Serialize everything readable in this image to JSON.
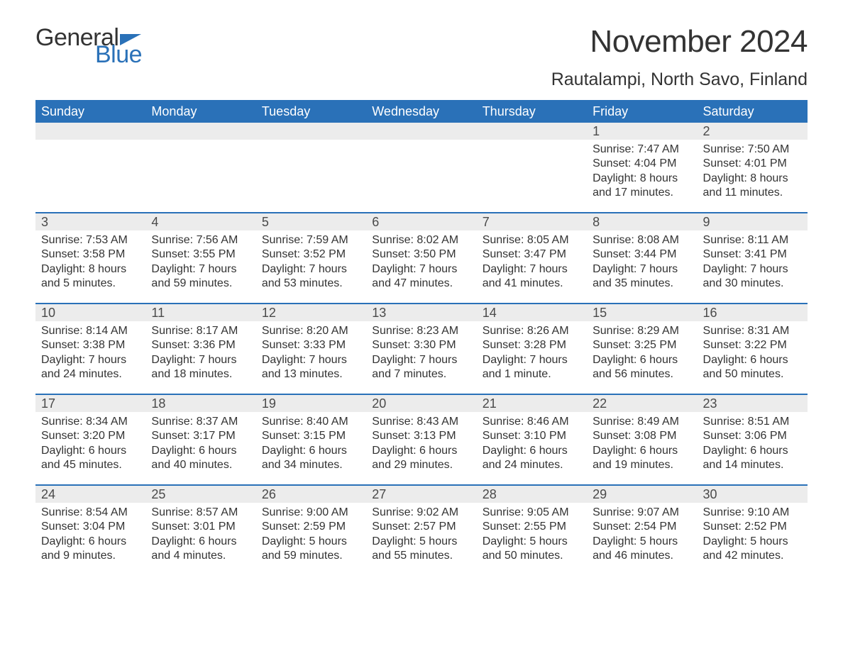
{
  "logo": {
    "text_general": "General",
    "text_blue": "Blue"
  },
  "header": {
    "month_title": "November 2024",
    "location": "Rautalampi, North Savo, Finland"
  },
  "styling": {
    "header_bg": "#2a71b8",
    "header_text_color": "#ffffff",
    "daynum_bg": "#ececec",
    "body_text_color": "#333333",
    "row_border_color": "#2a71b8",
    "dow_fontsize": 18,
    "daynum_fontsize": 18,
    "body_fontsize": 16,
    "title_fontsize": 44,
    "location_fontsize": 25
  },
  "days_of_week": [
    "Sunday",
    "Monday",
    "Tuesday",
    "Wednesday",
    "Thursday",
    "Friday",
    "Saturday"
  ],
  "weeks": [
    [
      {
        "empty": true
      },
      {
        "empty": true
      },
      {
        "empty": true
      },
      {
        "empty": true
      },
      {
        "empty": true
      },
      {
        "day": "1",
        "sunrise": "Sunrise: 7:47 AM",
        "sunset": "Sunset: 4:04 PM",
        "daylight1": "Daylight: 8 hours",
        "daylight2": "and 17 minutes."
      },
      {
        "day": "2",
        "sunrise": "Sunrise: 7:50 AM",
        "sunset": "Sunset: 4:01 PM",
        "daylight1": "Daylight: 8 hours",
        "daylight2": "and 11 minutes."
      }
    ],
    [
      {
        "day": "3",
        "sunrise": "Sunrise: 7:53 AM",
        "sunset": "Sunset: 3:58 PM",
        "daylight1": "Daylight: 8 hours",
        "daylight2": "and 5 minutes."
      },
      {
        "day": "4",
        "sunrise": "Sunrise: 7:56 AM",
        "sunset": "Sunset: 3:55 PM",
        "daylight1": "Daylight: 7 hours",
        "daylight2": "and 59 minutes."
      },
      {
        "day": "5",
        "sunrise": "Sunrise: 7:59 AM",
        "sunset": "Sunset: 3:52 PM",
        "daylight1": "Daylight: 7 hours",
        "daylight2": "and 53 minutes."
      },
      {
        "day": "6",
        "sunrise": "Sunrise: 8:02 AM",
        "sunset": "Sunset: 3:50 PM",
        "daylight1": "Daylight: 7 hours",
        "daylight2": "and 47 minutes."
      },
      {
        "day": "7",
        "sunrise": "Sunrise: 8:05 AM",
        "sunset": "Sunset: 3:47 PM",
        "daylight1": "Daylight: 7 hours",
        "daylight2": "and 41 minutes."
      },
      {
        "day": "8",
        "sunrise": "Sunrise: 8:08 AM",
        "sunset": "Sunset: 3:44 PM",
        "daylight1": "Daylight: 7 hours",
        "daylight2": "and 35 minutes."
      },
      {
        "day": "9",
        "sunrise": "Sunrise: 8:11 AM",
        "sunset": "Sunset: 3:41 PM",
        "daylight1": "Daylight: 7 hours",
        "daylight2": "and 30 minutes."
      }
    ],
    [
      {
        "day": "10",
        "sunrise": "Sunrise: 8:14 AM",
        "sunset": "Sunset: 3:38 PM",
        "daylight1": "Daylight: 7 hours",
        "daylight2": "and 24 minutes."
      },
      {
        "day": "11",
        "sunrise": "Sunrise: 8:17 AM",
        "sunset": "Sunset: 3:36 PM",
        "daylight1": "Daylight: 7 hours",
        "daylight2": "and 18 minutes."
      },
      {
        "day": "12",
        "sunrise": "Sunrise: 8:20 AM",
        "sunset": "Sunset: 3:33 PM",
        "daylight1": "Daylight: 7 hours",
        "daylight2": "and 13 minutes."
      },
      {
        "day": "13",
        "sunrise": "Sunrise: 8:23 AM",
        "sunset": "Sunset: 3:30 PM",
        "daylight1": "Daylight: 7 hours",
        "daylight2": "and 7 minutes."
      },
      {
        "day": "14",
        "sunrise": "Sunrise: 8:26 AM",
        "sunset": "Sunset: 3:28 PM",
        "daylight1": "Daylight: 7 hours",
        "daylight2": "and 1 minute."
      },
      {
        "day": "15",
        "sunrise": "Sunrise: 8:29 AM",
        "sunset": "Sunset: 3:25 PM",
        "daylight1": "Daylight: 6 hours",
        "daylight2": "and 56 minutes."
      },
      {
        "day": "16",
        "sunrise": "Sunrise: 8:31 AM",
        "sunset": "Sunset: 3:22 PM",
        "daylight1": "Daylight: 6 hours",
        "daylight2": "and 50 minutes."
      }
    ],
    [
      {
        "day": "17",
        "sunrise": "Sunrise: 8:34 AM",
        "sunset": "Sunset: 3:20 PM",
        "daylight1": "Daylight: 6 hours",
        "daylight2": "and 45 minutes."
      },
      {
        "day": "18",
        "sunrise": "Sunrise: 8:37 AM",
        "sunset": "Sunset: 3:17 PM",
        "daylight1": "Daylight: 6 hours",
        "daylight2": "and 40 minutes."
      },
      {
        "day": "19",
        "sunrise": "Sunrise: 8:40 AM",
        "sunset": "Sunset: 3:15 PM",
        "daylight1": "Daylight: 6 hours",
        "daylight2": "and 34 minutes."
      },
      {
        "day": "20",
        "sunrise": "Sunrise: 8:43 AM",
        "sunset": "Sunset: 3:13 PM",
        "daylight1": "Daylight: 6 hours",
        "daylight2": "and 29 minutes."
      },
      {
        "day": "21",
        "sunrise": "Sunrise: 8:46 AM",
        "sunset": "Sunset: 3:10 PM",
        "daylight1": "Daylight: 6 hours",
        "daylight2": "and 24 minutes."
      },
      {
        "day": "22",
        "sunrise": "Sunrise: 8:49 AM",
        "sunset": "Sunset: 3:08 PM",
        "daylight1": "Daylight: 6 hours",
        "daylight2": "and 19 minutes."
      },
      {
        "day": "23",
        "sunrise": "Sunrise: 8:51 AM",
        "sunset": "Sunset: 3:06 PM",
        "daylight1": "Daylight: 6 hours",
        "daylight2": "and 14 minutes."
      }
    ],
    [
      {
        "day": "24",
        "sunrise": "Sunrise: 8:54 AM",
        "sunset": "Sunset: 3:04 PM",
        "daylight1": "Daylight: 6 hours",
        "daylight2": "and 9 minutes."
      },
      {
        "day": "25",
        "sunrise": "Sunrise: 8:57 AM",
        "sunset": "Sunset: 3:01 PM",
        "daylight1": "Daylight: 6 hours",
        "daylight2": "and 4 minutes."
      },
      {
        "day": "26",
        "sunrise": "Sunrise: 9:00 AM",
        "sunset": "Sunset: 2:59 PM",
        "daylight1": "Daylight: 5 hours",
        "daylight2": "and 59 minutes."
      },
      {
        "day": "27",
        "sunrise": "Sunrise: 9:02 AM",
        "sunset": "Sunset: 2:57 PM",
        "daylight1": "Daylight: 5 hours",
        "daylight2": "and 55 minutes."
      },
      {
        "day": "28",
        "sunrise": "Sunrise: 9:05 AM",
        "sunset": "Sunset: 2:55 PM",
        "daylight1": "Daylight: 5 hours",
        "daylight2": "and 50 minutes."
      },
      {
        "day": "29",
        "sunrise": "Sunrise: 9:07 AM",
        "sunset": "Sunset: 2:54 PM",
        "daylight1": "Daylight: 5 hours",
        "daylight2": "and 46 minutes."
      },
      {
        "day": "30",
        "sunrise": "Sunrise: 9:10 AM",
        "sunset": "Sunset: 2:52 PM",
        "daylight1": "Daylight: 5 hours",
        "daylight2": "and 42 minutes."
      }
    ]
  ]
}
